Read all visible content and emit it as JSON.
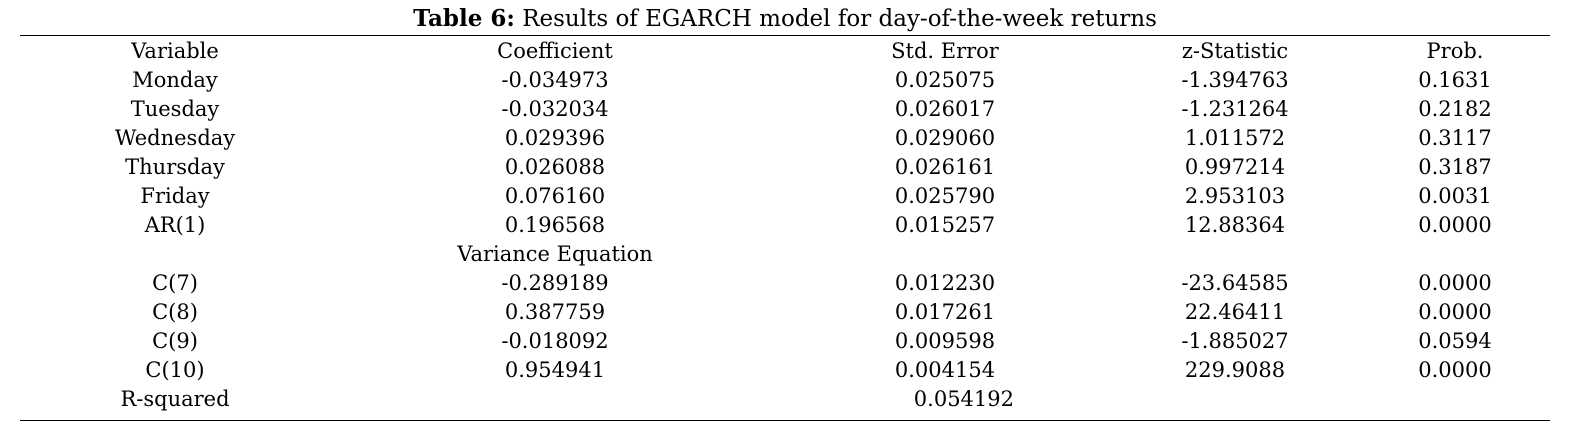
{
  "title": {
    "label": "Table 6:",
    "text": "Results of EGARCH model for day-of-the-week returns"
  },
  "table": {
    "headers": [
      "Variable",
      "Coefficient",
      "Std. Error",
      "z-Statistic",
      "Prob."
    ],
    "mean_rows": [
      [
        "Monday",
        "-0.034973",
        "0.025075",
        "-1.394763",
        "0.1631"
      ],
      [
        "Tuesday",
        "-0.032034",
        "0.026017",
        "-1.231264",
        "0.2182"
      ],
      [
        "Wednesday",
        "0.029396",
        "0.029060",
        "1.011572",
        "0.3117"
      ],
      [
        "Thursday",
        "0.026088",
        "0.026161",
        "0.997214",
        "0.3187"
      ],
      [
        "Friday",
        "0.076160",
        "0.025790",
        "2.953103",
        "0.0031"
      ],
      [
        "AR(1)",
        "0.196568",
        "0.015257",
        "12.88364",
        "0.0000"
      ]
    ],
    "section_label": "Variance Equation",
    "variance_rows": [
      [
        "C(7)",
        "-0.289189",
        "0.012230",
        "-23.64585",
        "0.0000"
      ],
      [
        "C(8)",
        "0.387759",
        "0.017261",
        "22.46411",
        "0.0000"
      ],
      [
        "C(9)",
        "-0.018092",
        "0.009598",
        "-1.885027",
        "0.0594"
      ],
      [
        "C(10)",
        "0.954941",
        "0.004154",
        "229.9088",
        "0.0000"
      ]
    ],
    "r_squared": {
      "label": "R-squared",
      "value": "0.054192"
    }
  }
}
